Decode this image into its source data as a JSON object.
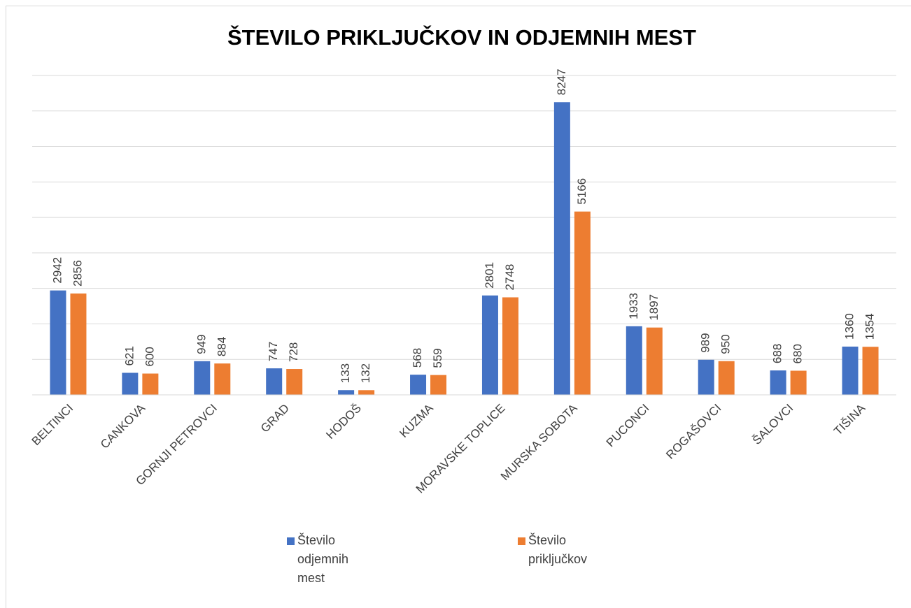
{
  "chart_data": {
    "type": "bar",
    "title": "ŠTEVILO PRIKLJUČKOV IN ODJEMNIH MEST",
    "categories": [
      "BELTINCI",
      "CANKOVA",
      "GORNJI PETROVCI",
      "GRAD",
      "HODOŠ",
      "KUZMA",
      "MORAVSKE TOPLICE",
      "MURSKA SOBOTA",
      "PUCONCI",
      "ROGAŠOVCI",
      "ŠALOVCI",
      "TIŠINA"
    ],
    "series": [
      {
        "name": "Število odjemnih mest",
        "color": "#4472c4",
        "values": [
          2942,
          621,
          949,
          747,
          133,
          568,
          2801,
          8247,
          1933,
          989,
          688,
          1360
        ]
      },
      {
        "name": "Število priključkov",
        "color": "#ed7d31",
        "values": [
          2856,
          600,
          884,
          728,
          132,
          559,
          2748,
          5166,
          1897,
          950,
          680,
          1354
        ]
      }
    ],
    "ylim": [
      0,
      9000
    ],
    "yticks": [
      0,
      1000,
      2000,
      3000,
      4000,
      5000,
      6000,
      7000,
      8000,
      9000
    ],
    "grid": true,
    "legend": "bottom"
  }
}
